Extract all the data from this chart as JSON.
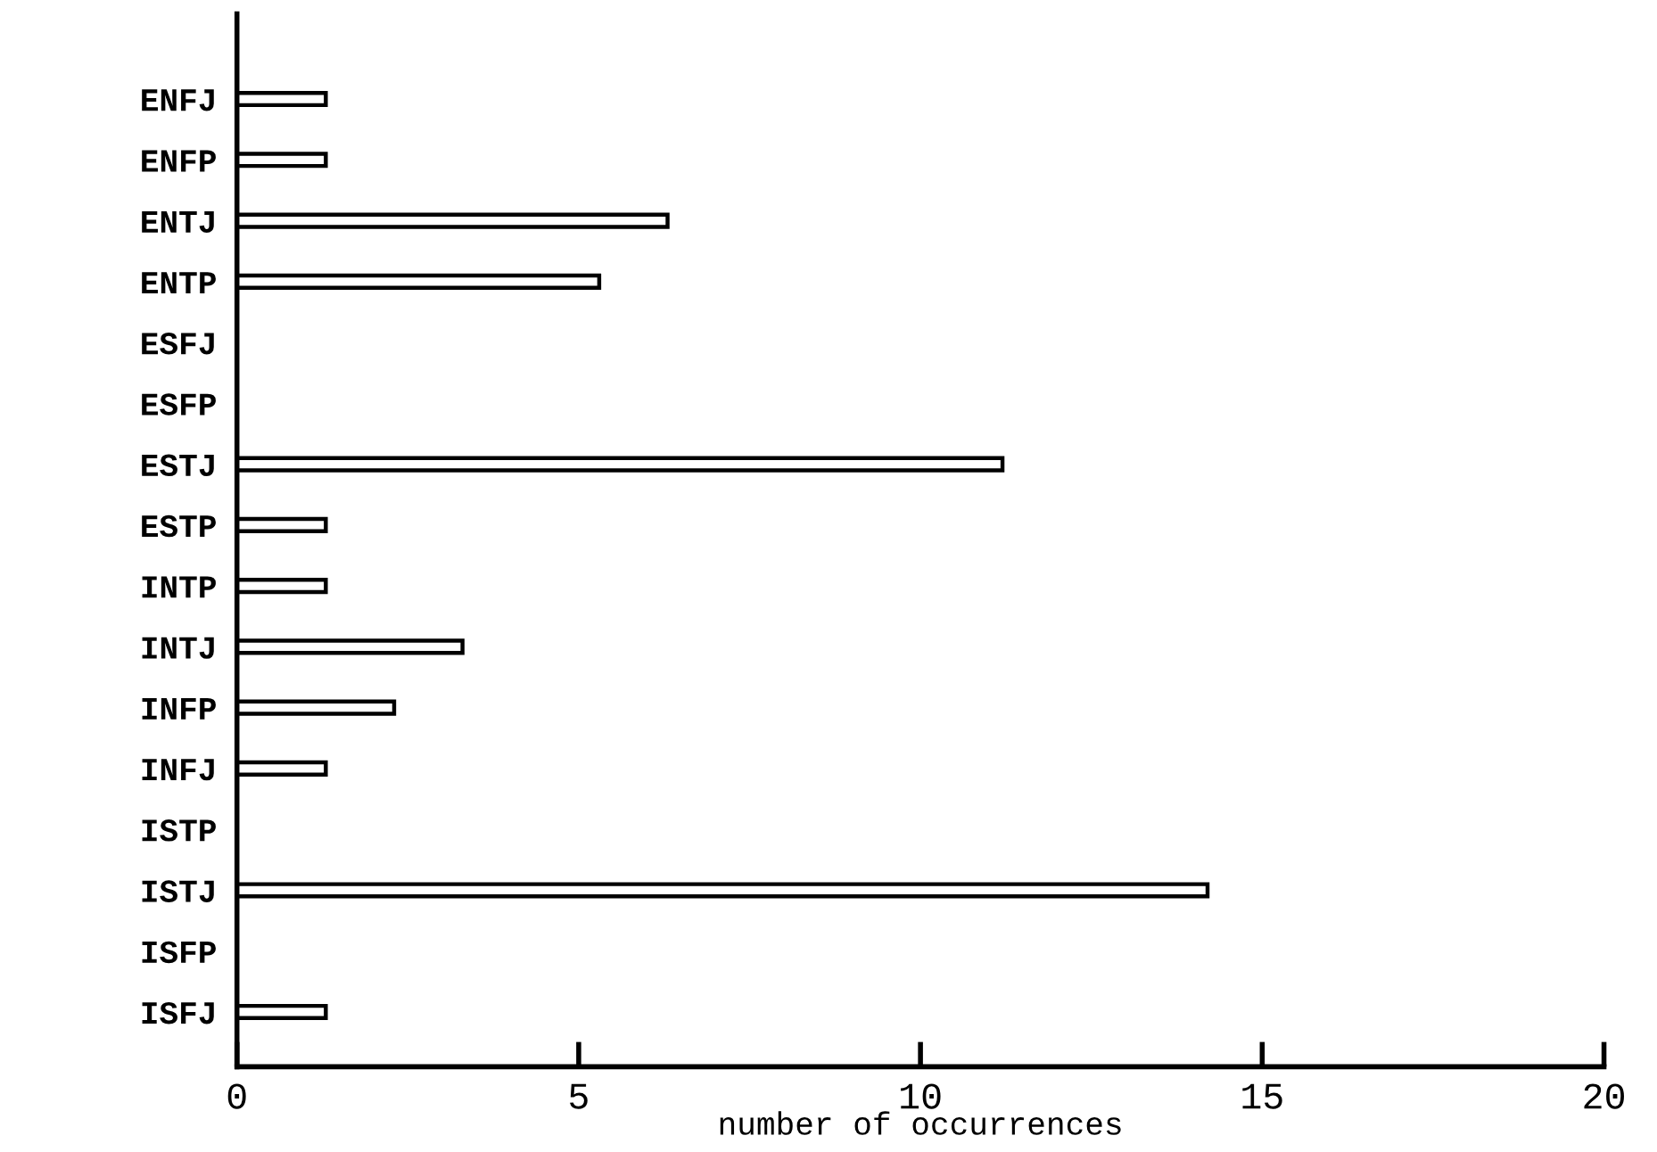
{
  "chart_data": {
    "type": "bar",
    "orientation": "horizontal",
    "xlabel": "number of occurrences",
    "categories": [
      "ENFJ",
      "ENFP",
      "ENTJ",
      "ENTP",
      "ESFJ",
      "ESFP",
      "ESTJ",
      "ESTP",
      "INTP",
      "INTJ",
      "INFP",
      "INFJ",
      "ISTP",
      "ISTJ",
      "ISFP",
      "ISFJ"
    ],
    "values": [
      1.3,
      1.3,
      6.3,
      5.3,
      0,
      0,
      11.2,
      1.3,
      1.3,
      3.3,
      2.3,
      1.3,
      0,
      14.2,
      0,
      1.3
    ],
    "color": "#000000",
    "xlim": [
      0,
      20
    ],
    "xticks": [
      0,
      5,
      10,
      15,
      20
    ],
    "grid": false
  }
}
